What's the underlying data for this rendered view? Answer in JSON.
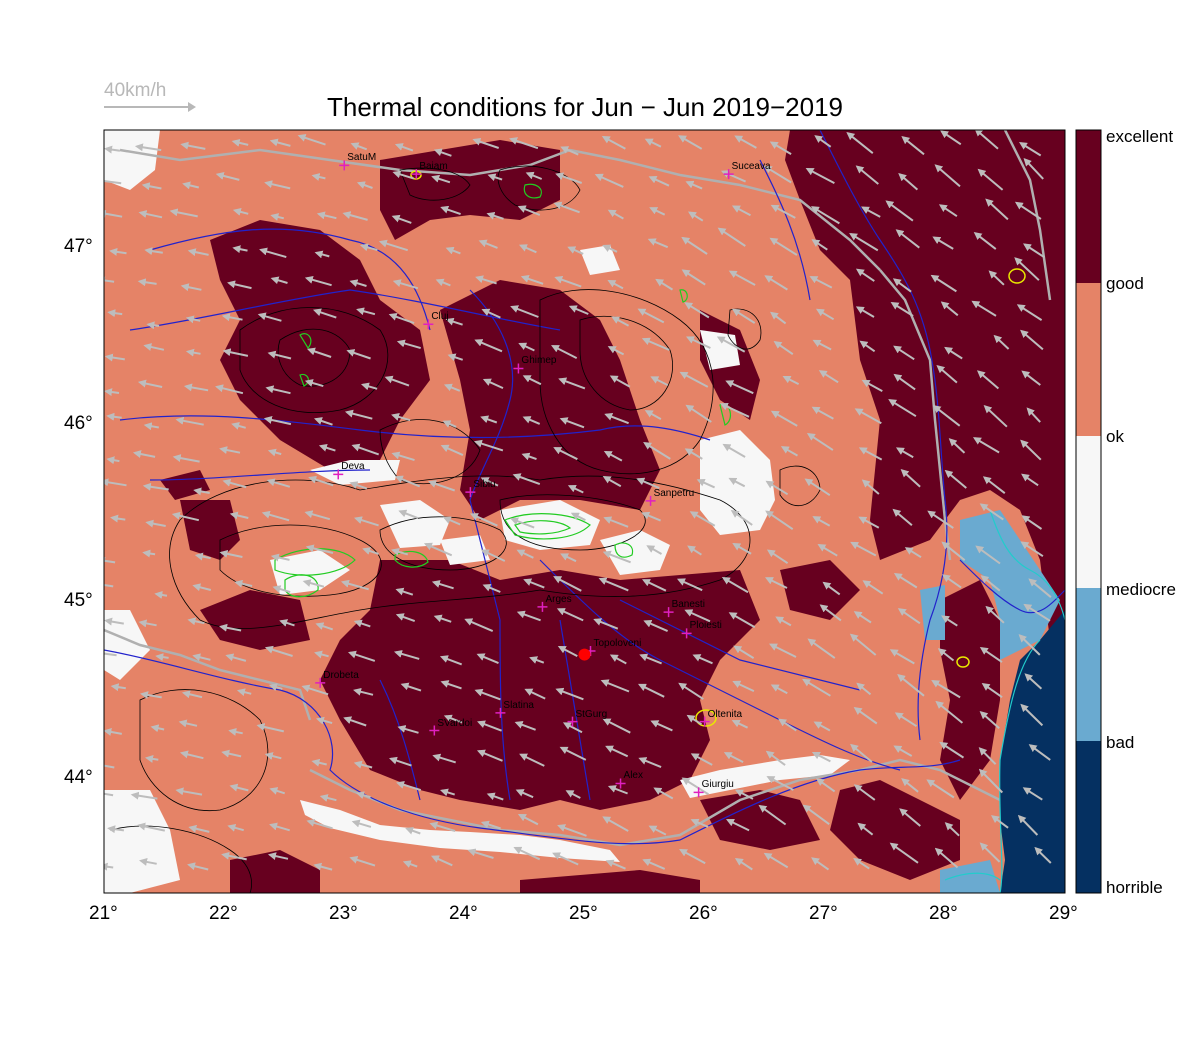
{
  "title": "Thermal conditions for Jun − Jun  2019−2019",
  "wind_reference": {
    "label": "40km/h",
    "color": "#b8b8b8"
  },
  "colors": {
    "excellent": "#67001f",
    "ok_fill": "#e58367",
    "mediocre_fill": "#f7f7f7",
    "bad_fill": "#6aaad0",
    "horrible_fill": "#053061",
    "rivers": "#2222cc",
    "borders": "#b0b0b0",
    "wind_arrows": "#bdbdbd",
    "cities": "#e020c0",
    "selected_site": "#ff0000",
    "contours_black": "#000000",
    "contours_green": "#22cc22"
  },
  "x_ticks": [
    "21°",
    "22°",
    "23°",
    "24°",
    "25°",
    "26°",
    "27°",
    "28°",
    "29°"
  ],
  "y_ticks": [
    "47°",
    "46°",
    "45°",
    "44°"
  ],
  "colorbar_labels": [
    "excellent",
    "good",
    "ok",
    "mediocre",
    "bad",
    "horrible"
  ],
  "cities": [
    {
      "name": "SatuM",
      "lon": 23.0,
      "lat": 47.45
    },
    {
      "name": "Baiam",
      "lon": 23.6,
      "lat": 47.4
    },
    {
      "name": "Suceava",
      "lon": 26.2,
      "lat": 47.4
    },
    {
      "name": "Cluj",
      "lon": 23.7,
      "lat": 46.55
    },
    {
      "name": "Ghimep",
      "lon": 24.45,
      "lat": 46.3
    },
    {
      "name": "Deva",
      "lon": 22.95,
      "lat": 45.7
    },
    {
      "name": "Sibiu",
      "lon": 24.05,
      "lat": 45.6
    },
    {
      "name": "Sanpetru",
      "lon": 25.55,
      "lat": 45.55
    },
    {
      "name": "Arges",
      "lon": 24.65,
      "lat": 44.95
    },
    {
      "name": "Banesti",
      "lon": 25.7,
      "lat": 44.92
    },
    {
      "name": "Ploiesti",
      "lon": 25.85,
      "lat": 44.8
    },
    {
      "name": "Topoloveni",
      "lon": 25.05,
      "lat": 44.7
    },
    {
      "name": "Drobeta",
      "lon": 22.8,
      "lat": 44.52
    },
    {
      "name": "Slatina",
      "lon": 24.3,
      "lat": 44.35
    },
    {
      "name": "StGurg",
      "lon": 24.9,
      "lat": 44.3
    },
    {
      "name": "Oltenita",
      "lon": 26.0,
      "lat": 44.3
    },
    {
      "name": "SVardoi",
      "lon": 23.75,
      "lat": 44.25
    },
    {
      "name": "Alex",
      "lon": 25.3,
      "lat": 43.95
    },
    {
      "name": "Giurgiu",
      "lon": 25.95,
      "lat": 43.9
    }
  ],
  "selected_site": {
    "name": "Topoloveni",
    "lon": 25.0,
    "lat": 44.68
  }
}
